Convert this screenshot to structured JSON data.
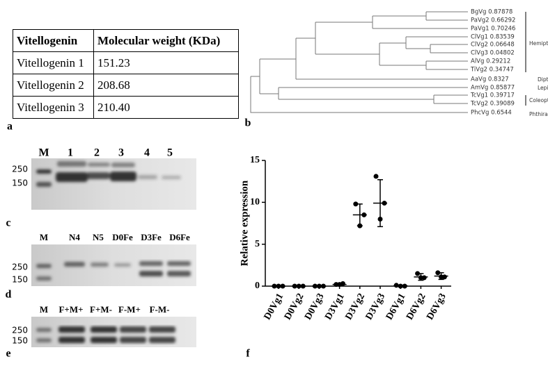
{
  "panel_labels": [
    "a",
    "b",
    "c",
    "d",
    "e",
    "f"
  ],
  "table": {
    "header": [
      "Vitellogenin",
      "Molecular weight (KDa)"
    ],
    "rows": [
      [
        "Vitellogenin 1",
        "151.23"
      ],
      [
        "Vitellogenin 2",
        "208.68"
      ],
      [
        "Vitellogenin 3",
        "210.40"
      ]
    ]
  },
  "tree": {
    "leaves": [
      "BgVg 0.87878",
      "PaVg2 0.66292",
      "PaVg1 0.70246",
      "ClVg1 0.83539",
      "ClVg2 0.06648",
      "ClVg3 0.04802",
      "AlVg 0.29212",
      "TiVg2 0.34747",
      "AaVg 0.8327",
      "AmVg 0.85877",
      "TcVg1 0.39717",
      "TcVg2 0.39089",
      "PhcVg 0.6544"
    ],
    "groups": [
      "Hemiptera",
      "Diptera",
      "Lepidoptera",
      "Coleoptera",
      "Phthiraptera"
    ]
  },
  "gels": [
    {
      "lanes": [
        "M",
        "1",
        "2",
        "3",
        "4",
        "5"
      ],
      "markers": [
        "250",
        "150"
      ]
    },
    {
      "lanes": [
        "M",
        "N4",
        "N5",
        "D0Fe",
        "D3Fe",
        "D6Fe"
      ],
      "markers": [
        "250",
        "150"
      ]
    },
    {
      "lanes": [
        "M",
        "F+M+",
        "F+M-",
        "F-M+",
        "F-M-"
      ],
      "markers": [
        "250",
        "150"
      ]
    }
  ],
  "chart_data": {
    "type": "dot",
    "y_label": "Relative expression",
    "categories": [
      "D0Vg1",
      "D0Vg2",
      "D0Vg3",
      "D3Vg1",
      "D3Vg2",
      "D3Vg3",
      "D6Vg1",
      "D6Vg2",
      "D6Vg3"
    ],
    "values": [
      0,
      0,
      0,
      0.2,
      8.5,
      9.9,
      0.05,
      1.1,
      1.2
    ],
    "errors": [
      0,
      0,
      0,
      0.1,
      1.3,
      2.8,
      0.05,
      0.4,
      0.4
    ],
    "points": [
      [
        0,
        0,
        0
      ],
      [
        0,
        0,
        0
      ],
      [
        0,
        0,
        0
      ],
      [
        0.2,
        0.3,
        0.2
      ],
      [
        9.8,
        8.5,
        7.2
      ],
      [
        13.1,
        9.9,
        8.0
      ],
      [
        0.1,
        0,
        0
      ],
      [
        1.5,
        1.0,
        1.0
      ],
      [
        1.6,
        1.1,
        1.1
      ]
    ],
    "color": "#000000",
    "ylim": [
      0,
      15
    ],
    "yticks": [
      0,
      5,
      10,
      15
    ]
  }
}
